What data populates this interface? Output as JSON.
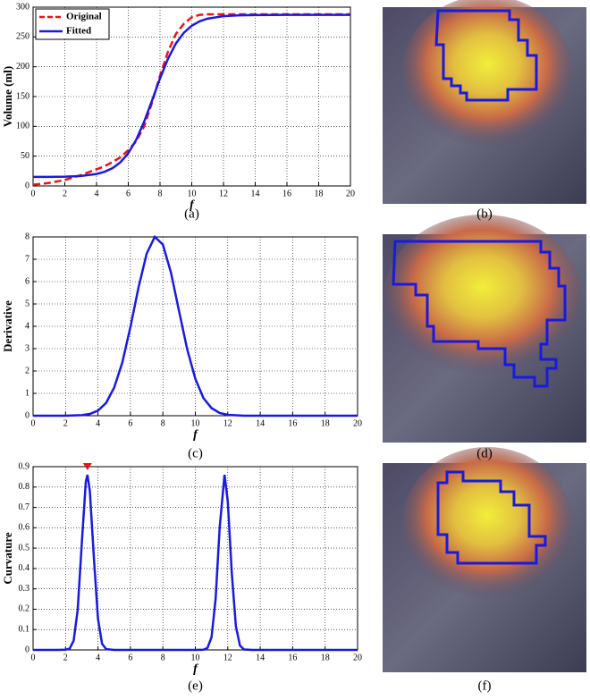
{
  "chart_data": [
    {
      "type": "line",
      "caption": "(a)",
      "ylabel": "Volume (ml)",
      "xlabel": "f",
      "x": [
        0,
        1,
        2,
        3,
        4,
        4.5,
        5,
        5.5,
        6,
        6.5,
        7,
        7.5,
        8,
        8.5,
        9,
        9.5,
        10,
        10.5,
        11,
        12,
        13,
        14,
        16,
        18,
        20
      ],
      "series": [
        {
          "name": "Original",
          "color": "#e8141c",
          "dash": true,
          "values": [
            2,
            5,
            10,
            18,
            28,
            33,
            40,
            48,
            60,
            75,
            100,
            140,
            185,
            225,
            255,
            272,
            283,
            287,
            288,
            288,
            288,
            288,
            288,
            288,
            288
          ]
        },
        {
          "name": "Fitted",
          "color": "#1a1adc",
          "dash": false,
          "values": [
            15.1,
            15.2,
            15.6,
            16.7,
            20.1,
            23.7,
            29.7,
            39.6,
            54.9,
            77.5,
            107.8,
            143.5,
            180.4,
            213.3,
            239,
            257,
            268.9,
            276.3,
            280.7,
            284.9,
            286.3,
            286.7,
            287,
            287,
            287
          ]
        }
      ],
      "xlim": [
        0,
        20
      ],
      "xticks": [
        0,
        2,
        4,
        6,
        8,
        10,
        12,
        14,
        16,
        18,
        20
      ],
      "ylim": [
        0,
        300
      ],
      "yticks": [
        0,
        50,
        100,
        150,
        200,
        250,
        300
      ],
      "grid": true,
      "legend": "upper-left"
    },
    {
      "type": "line",
      "caption": "(c)",
      "ylabel": "Derivative",
      "xlabel": "f",
      "x": [
        0,
        1,
        2,
        3,
        3.5,
        4,
        4.5,
        5,
        5.5,
        6,
        6.5,
        7,
        7.5,
        8,
        8.5,
        9,
        9.5,
        10,
        10.5,
        11,
        11.5,
        12,
        13,
        14,
        15,
        16,
        17,
        18,
        19,
        20
      ],
      "series": [
        {
          "name": "Derivative",
          "color": "#1a1adc",
          "dash": false,
          "values": [
            0,
            0,
            0,
            0.024,
            0.08,
            0.23,
            0.57,
            1.26,
            2.38,
            3.97,
            5.74,
            7.25,
            8,
            7.66,
            6.4,
            4.67,
            2.97,
            1.65,
            0.79,
            0.34,
            0.12,
            0.04,
            0,
            0,
            0,
            0,
            0,
            0,
            0,
            0
          ]
        }
      ],
      "xlim": [
        0,
        20
      ],
      "xticks": [
        0,
        2,
        4,
        6,
        8,
        10,
        12,
        14,
        16,
        18,
        20
      ],
      "ylim": [
        0,
        8
      ],
      "yticks": [
        0,
        1,
        2,
        3,
        4,
        5,
        6,
        7,
        8
      ],
      "grid": true
    },
    {
      "type": "line",
      "caption": "(e)",
      "ylabel": "Curvature",
      "xlabel": "f",
      "x": [
        0,
        1,
        1.5,
        2,
        2.25,
        2.5,
        2.75,
        3,
        3.25,
        3.35,
        3.5,
        3.75,
        4,
        4.25,
        4.5,
        5,
        6,
        8,
        10,
        10.5,
        10.75,
        11,
        11.25,
        11.5,
        11.8,
        12,
        12.25,
        12.5,
        12.75,
        13,
        13.5,
        14,
        16,
        18,
        20
      ],
      "series": [
        {
          "name": "Curvature",
          "color": "#1a1adc",
          "dash": false,
          "values": [
            0,
            0,
            0,
            0.001,
            0.006,
            0.045,
            0.197,
            0.52,
            0.825,
            0.86,
            0.78,
            0.45,
            0.154,
            0.031,
            0.004,
            0,
            0,
            0,
            0,
            0.001,
            0.01,
            0.063,
            0.25,
            0.6,
            0.86,
            0.73,
            0.375,
            0.116,
            0.022,
            0.002,
            0,
            0,
            0,
            0,
            0
          ]
        }
      ],
      "marker": {
        "x": 3.35,
        "y": 0.9,
        "color": "#e8141c"
      },
      "xlim": [
        0,
        20
      ],
      "xticks": [
        0,
        2,
        4,
        6,
        8,
        10,
        12,
        14,
        16,
        18,
        20
      ],
      "ylim": [
        0,
        0.9
      ],
      "yticks": [
        0,
        0.1,
        0.2,
        0.3,
        0.4,
        0.5,
        0.6,
        0.7,
        0.8,
        0.9
      ],
      "grid": true
    }
  ],
  "images": [
    {
      "caption": "(b)"
    },
    {
      "caption": "(d)"
    },
    {
      "caption": "(f)"
    }
  ]
}
